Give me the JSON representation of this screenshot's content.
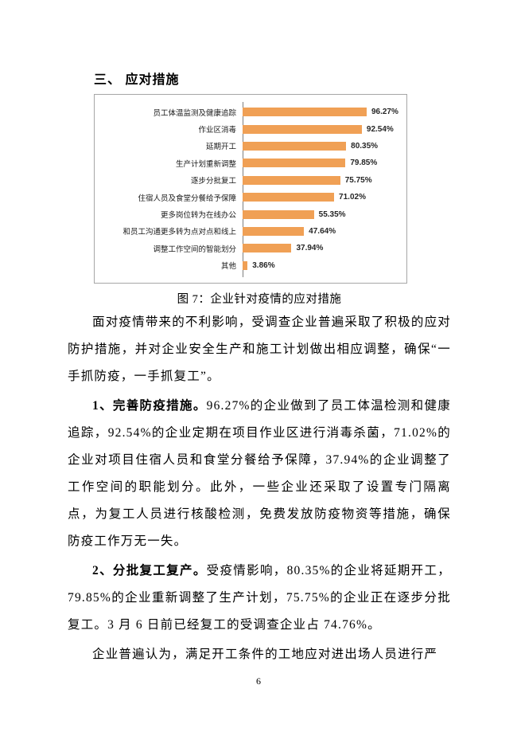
{
  "heading": {
    "text": "三、 应对措施"
  },
  "figure": {
    "caption": "图 7：企业针对疫情的应对措施"
  },
  "chart_data": {
    "type": "bar",
    "orientation": "horizontal",
    "title": "",
    "xlabel": "",
    "ylabel": "",
    "xlim": [
      0,
      100
    ],
    "grid": false,
    "legend": false,
    "bar_color": "#f0a055",
    "border_color": "#a6a6a6",
    "axis_color": "#7f7f7f",
    "categories": [
      "员工体温监测及健康追踪",
      "作业区消毒",
      "延期开工",
      "生产计划重新调整",
      "逐步分批复工",
      "住宿人员及食堂分餐给予保障",
      "更多岗位转为在线办公",
      "和员工沟通更多转为点对点和线上",
      "调整工作空间的智能划分",
      "其他"
    ],
    "values": [
      96.27,
      92.54,
      80.35,
      79.85,
      75.75,
      71.02,
      55.35,
      47.64,
      37.94,
      3.86
    ],
    "value_labels": [
      "96.27%",
      "92.54%",
      "80.35%",
      "79.85%",
      "75.75%",
      "71.02%",
      "55.35%",
      "47.64%",
      "37.94%",
      "3.86%"
    ]
  },
  "body": {
    "p1": "面对疫情带来的不利影响，受调查企业普遍采取了积极的应对防护措施，并对企业安全生产和施工计划做出相应调整，确保“一手抓防疫，一手抓复工”。",
    "p2_lead": "1、完善防疫措施。",
    "p2_rest": "96.27%的企业做到了员工体温检测和健康追踪，92.54%的企业定期在项目作业区进行消毒杀菌，71.02%的企业对项目住宿人员和食堂分餐给予保障，37.94%的企业调整了工作空间的职能划分。此外，一些企业还采取了设置专门隔离点，为复工人员进行核酸检测，免费发放防疫物资等措施，确保防疫工作万无一失。",
    "p3_lead": "2、分批复工复产。",
    "p3_rest": "受疫情影响，80.35%的企业将延期开工，79.85%的企业重新调整了生产计划，75.75%的企业正在逐步分批复工。3 月 6 日前已经复工的受调查企业占 74.76%。",
    "p4": "企业普遍认为，满足开工条件的工地应对进出场人员进行严"
  },
  "page": {
    "number": "6"
  }
}
